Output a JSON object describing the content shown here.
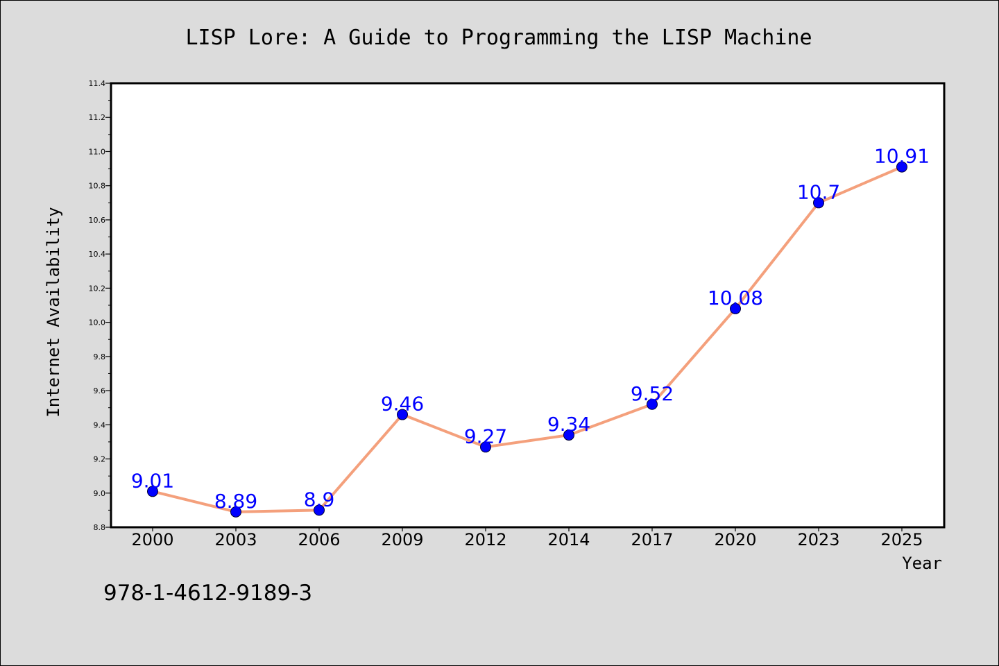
{
  "chart_data": {
    "type": "line",
    "title": "LISP Lore: A Guide to Programming the LISP Machine",
    "xlabel": "Year",
    "ylabel": "Internet Availability",
    "categories": [
      "2000",
      "2003",
      "2006",
      "2009",
      "2012",
      "2014",
      "2017",
      "2020",
      "2023",
      "2025"
    ],
    "values": [
      9.01,
      8.89,
      8.9,
      9.46,
      9.27,
      9.34,
      9.52,
      10.08,
      10.7,
      10.91
    ],
    "data_labels": [
      "9.01",
      "8.89",
      "8.9",
      "9.46",
      "9.27",
      "9.34",
      "9.52",
      "10.08",
      "10.7",
      "10.91"
    ],
    "ylim": [
      8.8,
      11.4
    ],
    "yticks": [
      "8.8",
      "9.0",
      "9.2",
      "9.4",
      "9.6",
      "9.8",
      "10.0",
      "10.2",
      "10.4",
      "10.6",
      "10.8",
      "11.0",
      "11.2",
      "11.4"
    ],
    "grid": false,
    "colors": {
      "line": "#f4a07c",
      "marker": "#0000ff",
      "label": "#0000ff",
      "background": "#dcdcdc",
      "plot_area": "#ffffff"
    }
  },
  "annotation": "978-1-4612-9189-3"
}
